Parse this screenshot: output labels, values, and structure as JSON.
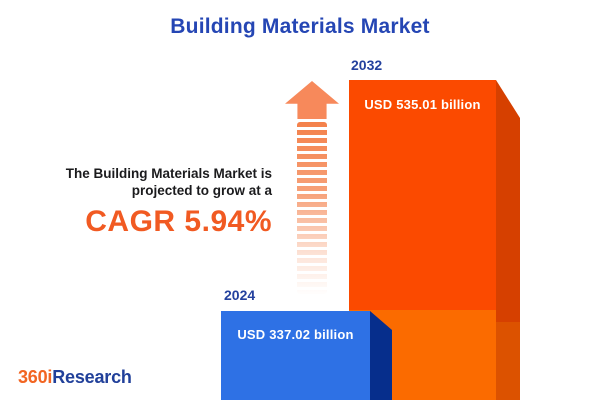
{
  "title": {
    "text": "Building Materials Market"
  },
  "description": {
    "line1": "The Building Materials Market is",
    "line2": "projected to grow at a",
    "cagr": "CAGR 5.94%"
  },
  "chart_data": {
    "type": "bar",
    "title": "Building Materials Market",
    "categories": [
      "2024",
      "2032"
    ],
    "values": [
      337.02,
      535.01
    ],
    "value_unit": "USD billion",
    "cagr_percent": 5.94,
    "bars": [
      {
        "year": "2024",
        "value": 337.02,
        "value_label": "USD 337.02 billion"
      },
      {
        "year": "2032",
        "value": 535.01,
        "value_label": "USD 535.01 billion"
      }
    ],
    "annotation": "CAGR 5.94%",
    "legend": "none",
    "grid": false
  },
  "logo": {
    "part1": "360i",
    "part2": "Research"
  },
  "colors": {
    "title_blue": "#2546B4",
    "year_label_blue": "#24419E",
    "cagr_orange": "#F15A22",
    "bar_2032_face_top": "#FB4A00",
    "bar_2032_face_bottom": "#FB6B00",
    "bar_2032_side_top": "#D64000",
    "bar_2032_side_bottom": "#DC5200",
    "bar_2024_face": "#2E71E5",
    "bar_2024_side": "#062E8C",
    "arrow_orange": "#F7895B",
    "value_label_white": "#FFFFFF",
    "logo_orange": "#F26522",
    "logo_blue": "#21409A",
    "background": "#FFFFFF"
  }
}
